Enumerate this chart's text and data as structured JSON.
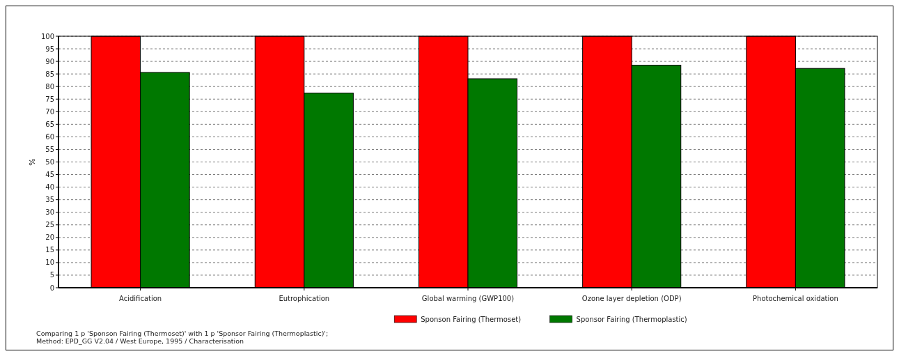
{
  "chart_data": {
    "type": "bar",
    "ylabel": "%",
    "categories": [
      "Acidification",
      "Eutrophication",
      "Global warming (GWP100)",
      "Ozone layer depletion (ODP)",
      "Photochemical oxidation"
    ],
    "series": [
      {
        "name": "Sponson Fairing (Thermoset)",
        "color": "#ff0000",
        "values": [
          100,
          100,
          100,
          100,
          100
        ]
      },
      {
        "name": "Sponsor Fairing (Thermoplastic)",
        "color": "#007800",
        "values": [
          85.6,
          77.4,
          83.1,
          88.5,
          87.2
        ]
      }
    ],
    "ylim": [
      0,
      100
    ],
    "yticks": [
      0,
      5,
      10,
      15,
      20,
      25,
      30,
      35,
      40,
      45,
      50,
      55,
      60,
      65,
      70,
      75,
      80,
      85,
      90,
      95,
      100
    ],
    "grid": "y",
    "legend": "bottom",
    "annotations": [
      "Comparing 1 p 'Sponson Fairing (Thermoset)' with 1 p 'Sponsor Fairing (Thermoplastic)';",
      "Method: EPD_GG V2.04 / West Europe, 1995 / Characterisation"
    ]
  }
}
